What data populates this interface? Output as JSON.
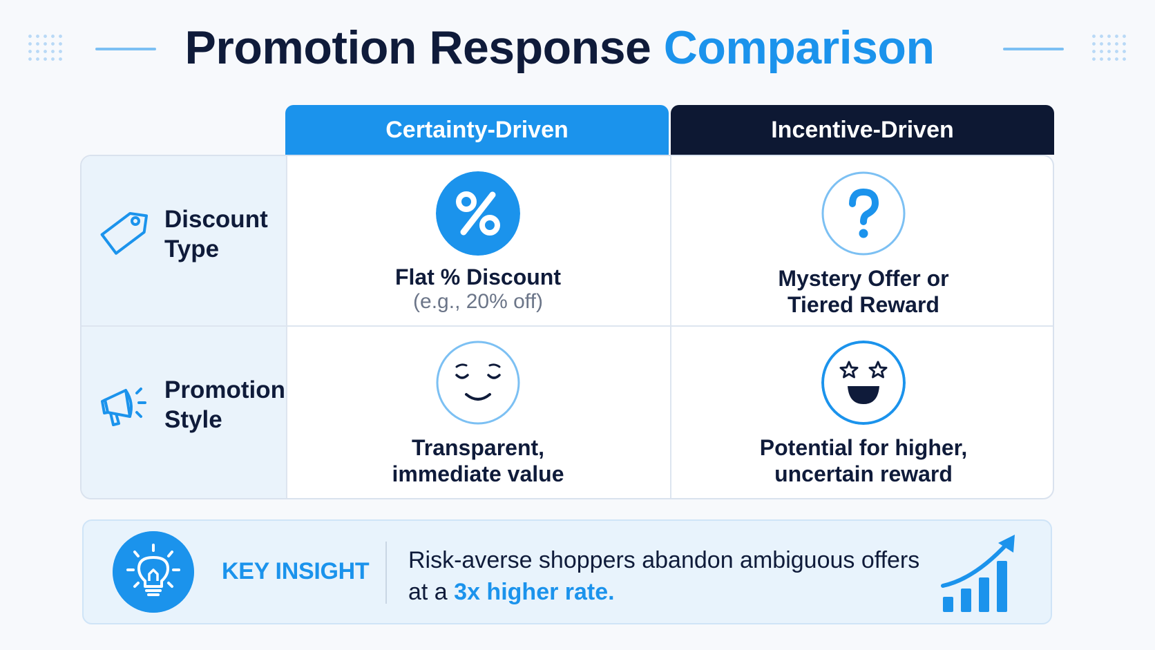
{
  "title": {
    "main": "Promotion Response",
    "accent": "Comparison"
  },
  "columns": {
    "certainty": "Certainty-Driven",
    "incentive": "Incentive-Driven"
  },
  "rows": [
    {
      "label": "Discount\nType",
      "icon": "price-tag-icon",
      "certainty": {
        "icon": "percent-icon",
        "main": "Flat % Discount",
        "sub": "(e.g., 20% off)"
      },
      "incentive": {
        "icon": "question-mark-icon",
        "main": "Mystery Offer or\nTiered Reward"
      }
    },
    {
      "label": "Promotion\nStyle",
      "icon": "megaphone-icon",
      "certainty": {
        "icon": "calm-face-icon",
        "main": "Transparent,\nimmediate value"
      },
      "incentive": {
        "icon": "star-eyes-face-icon",
        "main": "Potential for higher,\nuncertain reward"
      }
    }
  ],
  "insight": {
    "label": "KEY INSIGHT",
    "icon": "lightbulb-icon",
    "text_line1": "Risk-averse shoppers abandon ambiguous offers",
    "text_prefix": "at a ",
    "text_highlight": "3x higher rate.",
    "trend_icon": "growth-chart-icon"
  },
  "colors": {
    "accent": "#1b93ec",
    "dark": "#0d1833",
    "label_bg": "#eaf3fb"
  }
}
